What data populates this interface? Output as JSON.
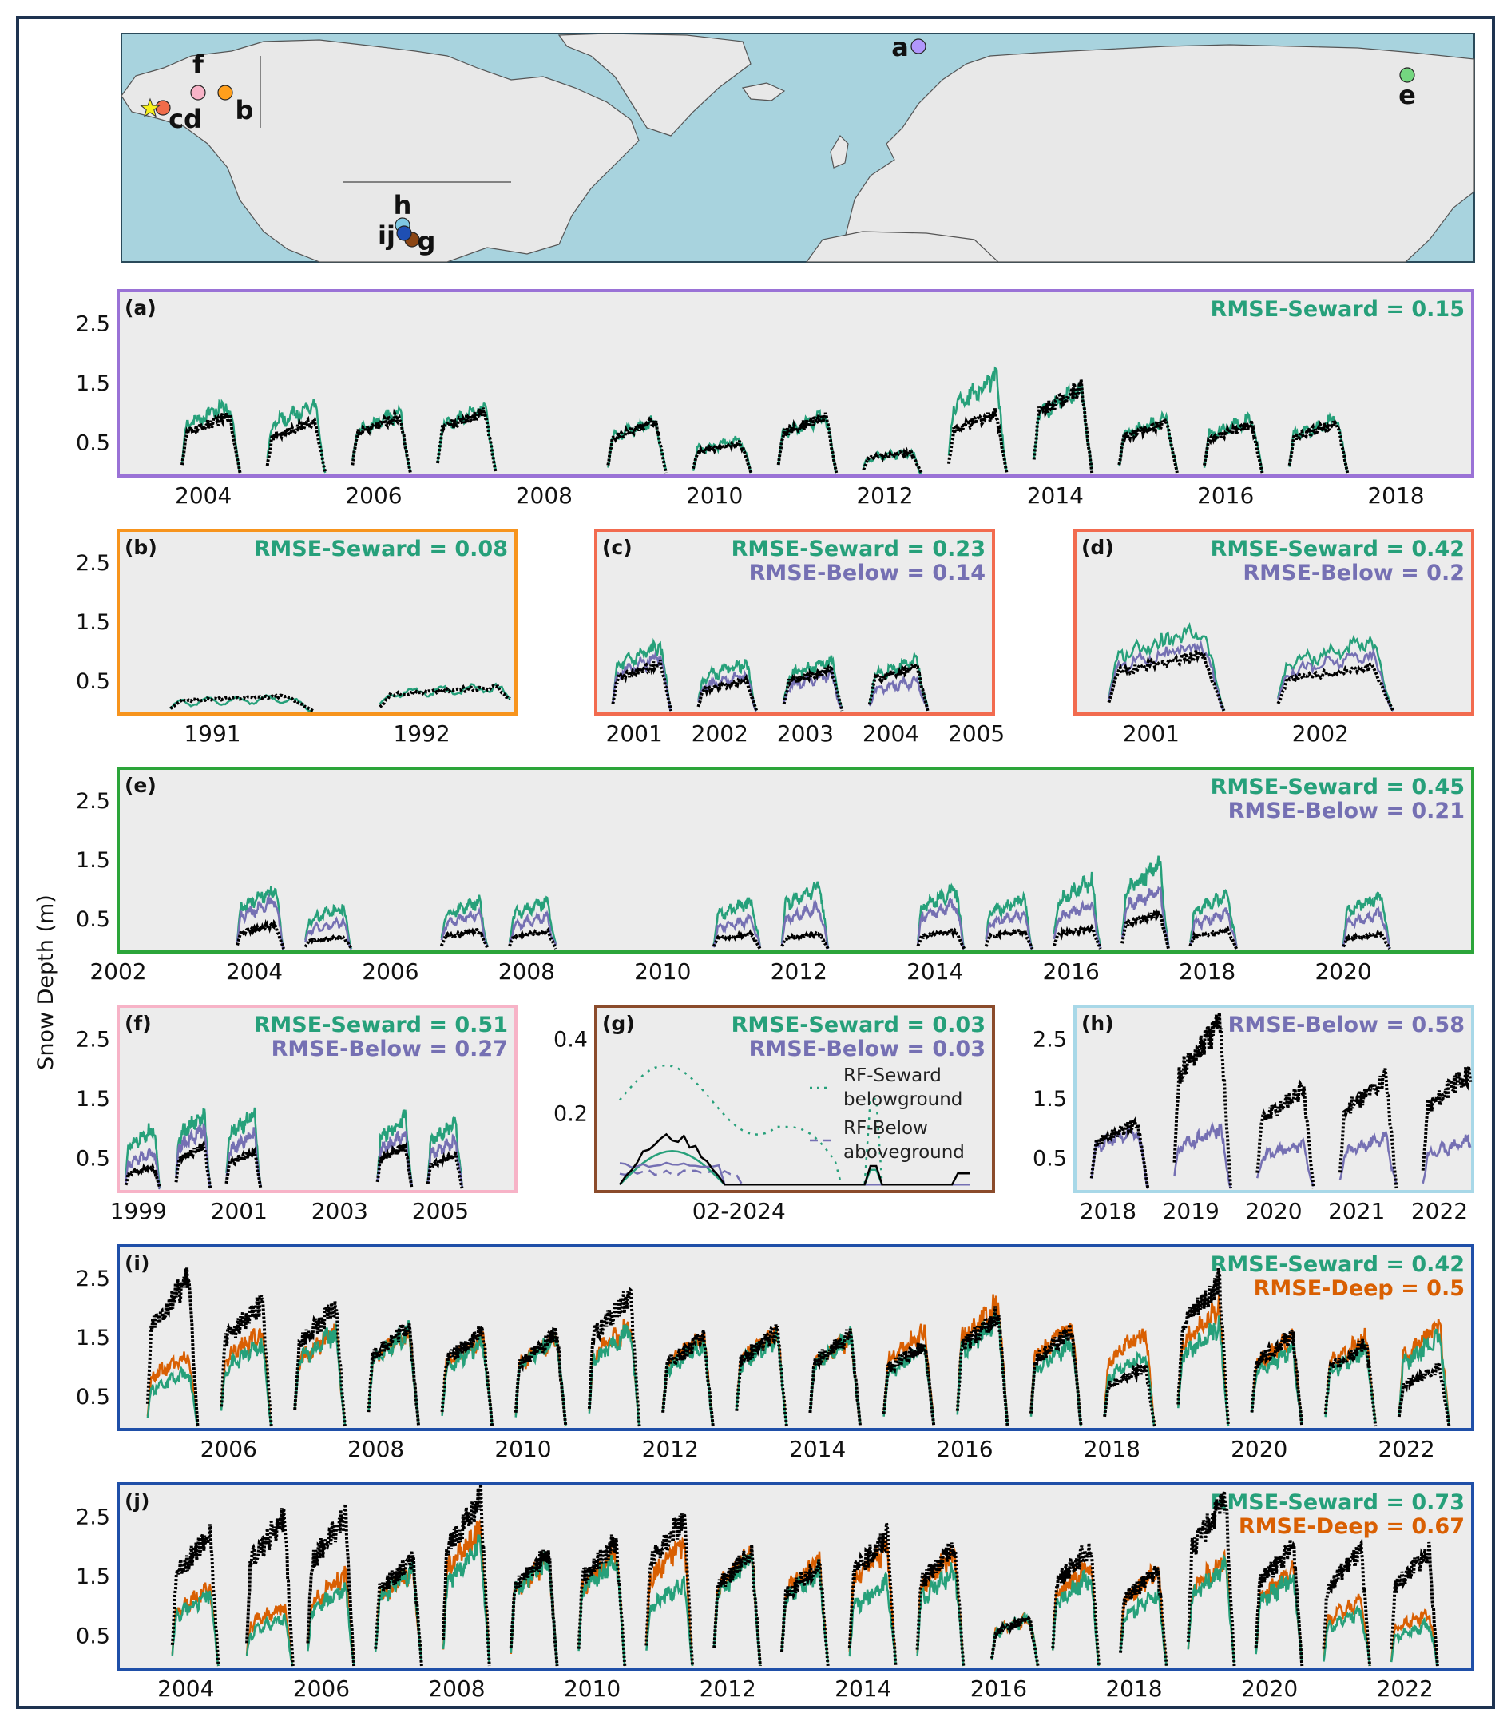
{
  "figure": {
    "ylabel": "Snow Depth (m)",
    "colors": {
      "frame": "#1e3350",
      "panel_bg": "#ececec",
      "seward": "#26a07a",
      "below": "#7570b3",
      "deep": "#d95f02",
      "obs": "#000000",
      "ocean": "#a8d3de",
      "land": "#e8e8e8"
    }
  },
  "map": {
    "sites": [
      {
        "label": "a",
        "color": "#b197fc"
      },
      {
        "label": "b",
        "color": "#ff9f1c"
      },
      {
        "label": "c",
        "color": "#f06c4a"
      },
      {
        "label": "d",
        "color": "#f06c4a"
      },
      {
        "label": "e",
        "color": "#74d680"
      },
      {
        "label": "f",
        "color": "#f7b3c7"
      },
      {
        "label": "g",
        "color": "#8b4513"
      },
      {
        "label": "h",
        "color": "#7ec8e3"
      },
      {
        "label": "i",
        "color": "#1f4fb3"
      },
      {
        "label": "j",
        "color": "#1f4fb3"
      }
    ],
    "labels": [
      "a",
      "b",
      "cd",
      "e",
      "f",
      "g",
      "h",
      "ij"
    ],
    "star_color": "#f7f01a"
  },
  "chart_data": [
    {
      "id": "a",
      "panel_label": "(a)",
      "type": "line",
      "border_color": "#9a72d6",
      "x_ticks": [
        "2004",
        "2006",
        "2008",
        "2010",
        "2012",
        "2014",
        "2016",
        "2018"
      ],
      "y_ticks": [
        "0.5",
        "1.5",
        "2.5"
      ],
      "ylim": [
        0,
        3
      ],
      "rmse": [
        {
          "text": "RMSE-Seward = 0.15",
          "color": "#26a07a"
        }
      ],
      "series": [
        {
          "key": "seward"
        },
        {
          "key": "obs"
        }
      ],
      "seasons": [
        {
          "start": 2003.75,
          "obs": 0.95,
          "seward": 1.15
        },
        {
          "start": 2004.75,
          "obs": 0.85,
          "seward": 1.15
        },
        {
          "start": 2005.75,
          "obs": 0.95,
          "seward": 1.0
        },
        {
          "start": 2006.75,
          "obs": 1.05,
          "seward": 1.1
        },
        {
          "start": 2008.75,
          "obs": 0.85,
          "seward": 0.85
        },
        {
          "start": 2009.75,
          "obs": 0.5,
          "seward": 0.55
        },
        {
          "start": 2010.75,
          "obs": 0.95,
          "seward": 0.95
        },
        {
          "start": 2011.75,
          "obs": 0.35,
          "seward": 0.35
        },
        {
          "start": 2012.75,
          "obs": 1.0,
          "seward": 1.6
        },
        {
          "start": 2013.75,
          "obs": 1.45,
          "seward": 1.4
        },
        {
          "start": 2014.75,
          "obs": 0.85,
          "seward": 0.9
        },
        {
          "start": 2015.75,
          "obs": 0.8,
          "seward": 0.9
        },
        {
          "start": 2016.75,
          "obs": 0.85,
          "seward": 0.9
        }
      ]
    },
    {
      "id": "b",
      "panel_label": "(b)",
      "type": "line",
      "border_color": "#f7941d",
      "x_ticks": [
        "1991",
        "1992"
      ],
      "y_ticks": [
        "0.5",
        "1.5",
        "2.5"
      ],
      "ylim": [
        0,
        3
      ],
      "rmse": [
        {
          "text": "RMSE-Seward = 0.08",
          "color": "#26a07a"
        }
      ],
      "series": [
        {
          "key": "seward"
        },
        {
          "key": "obs"
        }
      ],
      "seasons": [
        {
          "start": 1990.8,
          "obs": 0.25,
          "seward": 0.2
        },
        {
          "start": 1991.8,
          "obs": 0.4,
          "seward": 0.4
        }
      ]
    },
    {
      "id": "c",
      "panel_label": "(c)",
      "type": "line",
      "border_color": "#f26b4f",
      "x_ticks": [
        "2001",
        "2002",
        "2003",
        "2004",
        "2005"
      ],
      "y_ticks": [],
      "ylim": [
        0,
        3
      ],
      "rmse": [
        {
          "text": "RMSE-Seward = 0.23",
          "color": "#26a07a"
        },
        {
          "text": "RMSE-Below = 0.14",
          "color": "#7570b3"
        }
      ],
      "series": [
        {
          "key": "seward"
        },
        {
          "key": "below"
        },
        {
          "key": "obs"
        }
      ],
      "seasons": [
        {
          "start": 2000.75,
          "obs": 0.8,
          "seward": 1.1,
          "below": 0.9
        },
        {
          "start": 2001.75,
          "obs": 0.5,
          "seward": 0.8,
          "below": 0.6
        },
        {
          "start": 2002.75,
          "obs": 0.7,
          "seward": 0.85,
          "below": 0.6
        },
        {
          "start": 2003.75,
          "obs": 0.75,
          "seward": 0.85,
          "below": 0.5
        }
      ]
    },
    {
      "id": "d",
      "panel_label": "(d)",
      "type": "line",
      "border_color": "#f26b4f",
      "x_ticks": [
        "2001",
        "2002"
      ],
      "y_ticks": [],
      "ylim": [
        0,
        3
      ],
      "rmse": [
        {
          "text": "RMSE-Seward = 0.42",
          "color": "#26a07a"
        },
        {
          "text": "RMSE-Below = 0.2",
          "color": "#7570b3"
        }
      ],
      "series": [
        {
          "key": "seward"
        },
        {
          "key": "below"
        },
        {
          "key": "obs"
        }
      ],
      "seasons": [
        {
          "start": 2000.75,
          "obs": 0.95,
          "seward": 1.35,
          "below": 1.1
        },
        {
          "start": 2001.75,
          "obs": 0.75,
          "seward": 1.15,
          "below": 0.95
        }
      ]
    },
    {
      "id": "e",
      "panel_label": "(e)",
      "type": "line",
      "border_color": "#2ca53a",
      "x_ticks": [
        "2002",
        "2004",
        "2006",
        "2008",
        "2010",
        "2012",
        "2014",
        "2016",
        "2018",
        "2020"
      ],
      "y_ticks": [
        "0.5",
        "1.5",
        "2.5"
      ],
      "ylim": [
        0,
        3
      ],
      "rmse": [
        {
          "text": "RMSE-Seward = 0.45",
          "color": "#26a07a"
        },
        {
          "text": "RMSE-Below = 0.21",
          "color": "#7570b3"
        }
      ],
      "series": [
        {
          "key": "seward"
        },
        {
          "key": "below"
        },
        {
          "key": "obs"
        }
      ],
      "seasons": [
        {
          "start": 2003.75,
          "obs": 0.4,
          "seward": 1.0,
          "below": 0.8
        },
        {
          "start": 2004.75,
          "obs": 0.2,
          "seward": 0.7,
          "below": 0.45
        },
        {
          "start": 2006.75,
          "obs": 0.3,
          "seward": 0.8,
          "below": 0.6
        },
        {
          "start": 2007.75,
          "obs": 0.3,
          "seward": 0.8,
          "below": 0.55
        },
        {
          "start": 2010.75,
          "obs": 0.25,
          "seward": 0.8,
          "below": 0.5
        },
        {
          "start": 2011.75,
          "obs": 0.25,
          "seward": 1.05,
          "below": 0.7
        },
        {
          "start": 2013.75,
          "obs": 0.3,
          "seward": 1.0,
          "below": 0.75
        },
        {
          "start": 2014.75,
          "obs": 0.3,
          "seward": 0.85,
          "below": 0.6
        },
        {
          "start": 2015.75,
          "obs": 0.35,
          "seward": 1.15,
          "below": 0.75
        },
        {
          "start": 2016.75,
          "obs": 0.6,
          "seward": 1.4,
          "below": 1.0
        },
        {
          "start": 2017.75,
          "obs": 0.3,
          "seward": 0.9,
          "below": 0.6
        },
        {
          "start": 2020.0,
          "obs": 0.25,
          "seward": 0.9,
          "below": 0.6
        }
      ]
    },
    {
      "id": "f",
      "panel_label": "(f)",
      "type": "line",
      "border_color": "#f7b3c7",
      "x_ticks": [
        "1999",
        "2001",
        "2003",
        "2005"
      ],
      "y_ticks": [
        "0.5",
        "1.5",
        "2.5"
      ],
      "ylim": [
        0,
        3
      ],
      "rmse": [
        {
          "text": "RMSE-Seward = 0.51",
          "color": "#26a07a"
        },
        {
          "text": "RMSE-Below = 0.27",
          "color": "#7570b3"
        }
      ],
      "series": [
        {
          "key": "seward"
        },
        {
          "key": "below"
        },
        {
          "key": "obs"
        }
      ],
      "seasons": [
        {
          "start": 1998.75,
          "obs": 0.35,
          "seward": 1.0,
          "below": 0.6
        },
        {
          "start": 1999.75,
          "obs": 0.7,
          "seward": 1.25,
          "below": 1.0
        },
        {
          "start": 2000.75,
          "obs": 0.6,
          "seward": 1.25,
          "below": 0.9
        },
        {
          "start": 2003.75,
          "obs": 0.7,
          "seward": 1.2,
          "below": 0.9
        },
        {
          "start": 2004.75,
          "obs": 0.55,
          "seward": 1.1,
          "below": 0.8
        }
      ]
    },
    {
      "id": "g",
      "panel_label": "(g)",
      "type": "line",
      "border_color": "#8b4b2b",
      "x_ticks": [
        "02-2024"
      ],
      "y_ticks": [
        "0.2",
        "0.4"
      ],
      "ylim": [
        0,
        0.48
      ],
      "rmse": [
        {
          "text": "RMSE-Seward = 0.03",
          "color": "#26a07a"
        },
        {
          "text": "RMSE-Below = 0.03",
          "color": "#7570b3"
        }
      ],
      "legend": [
        {
          "key": "seward_dotted",
          "line1": "RF-Seward",
          "line2": "belowground"
        },
        {
          "key": "below_dashed",
          "line1": "RF-Below",
          "line2": "aboveground"
        }
      ],
      "series": [
        {
          "key": "seward_dotted"
        },
        {
          "key": "below_dashed"
        },
        {
          "key": "seward"
        },
        {
          "key": "below"
        },
        {
          "key": "obs"
        }
      ],
      "peaks": {
        "obs": 0.14,
        "seward_dotted": 0.31,
        "below_dashed": 0.05
      }
    },
    {
      "id": "h",
      "panel_label": "(h)",
      "type": "line",
      "border_color": "#a8d8e8",
      "x_ticks": [
        "2018",
        "2019",
        "2020",
        "2021",
        "2022"
      ],
      "y_ticks": [
        "0.5",
        "1.5",
        "2.5"
      ],
      "ylim": [
        0,
        3
      ],
      "rmse": [
        {
          "text": "RMSE-Below = 0.58",
          "color": "#7570b3"
        }
      ],
      "series": [
        {
          "key": "below"
        },
        {
          "key": "obs"
        }
      ],
      "seasons": [
        {
          "start": 2017.8,
          "obs": 1.1,
          "below": 1.0
        },
        {
          "start": 2018.8,
          "obs": 2.75,
          "below": 1.0
        },
        {
          "start": 2019.8,
          "obs": 1.65,
          "below": 0.75
        },
        {
          "start": 2020.8,
          "obs": 1.85,
          "below": 0.85
        },
        {
          "start": 2021.8,
          "obs": 1.95,
          "below": 0.8
        }
      ]
    },
    {
      "id": "i",
      "panel_label": "(i)",
      "type": "line",
      "border_color": "#1f4fa8",
      "x_ticks": [
        "2006",
        "2008",
        "2010",
        "2012",
        "2014",
        "2016",
        "2018",
        "2020",
        "2022"
      ],
      "y_ticks": [
        "0.5",
        "1.5",
        "2.5"
      ],
      "ylim": [
        0,
        3
      ],
      "rmse": [
        {
          "text": "RMSE-Seward = 0.42",
          "color": "#26a07a"
        },
        {
          "text": "RMSE-Deep = 0.5",
          "color": "#d95f02"
        }
      ],
      "series": [
        {
          "key": "deep"
        },
        {
          "key": "seward"
        },
        {
          "key": "obs"
        }
      ],
      "seasons": [
        {
          "start": 2004.9,
          "obs": 2.5,
          "seward": 0.9,
          "deep": 1.2
        },
        {
          "start": 2005.9,
          "obs": 2.1,
          "seward": 1.4,
          "deep": 1.6
        },
        {
          "start": 2006.9,
          "obs": 2.0,
          "seward": 1.6,
          "deep": 1.6
        },
        {
          "start": 2007.9,
          "obs": 1.7,
          "seward": 1.6,
          "deep": 1.6
        },
        {
          "start": 2008.9,
          "obs": 1.6,
          "seward": 1.4,
          "deep": 1.5
        },
        {
          "start": 2009.9,
          "obs": 1.55,
          "seward": 1.5,
          "deep": 1.5
        },
        {
          "start": 2010.9,
          "obs": 2.2,
          "seward": 1.6,
          "deep": 1.7
        },
        {
          "start": 2011.9,
          "obs": 1.5,
          "seward": 1.4,
          "deep": 1.5
        },
        {
          "start": 2012.9,
          "obs": 1.6,
          "seward": 1.5,
          "deep": 1.6
        },
        {
          "start": 2013.9,
          "obs": 1.55,
          "seward": 1.5,
          "deep": 1.5
        },
        {
          "start": 2014.9,
          "obs": 1.4,
          "seward": 1.3,
          "deep": 1.6
        },
        {
          "start": 2015.9,
          "obs": 1.9,
          "seward": 1.8,
          "deep": 2.1
        },
        {
          "start": 2016.9,
          "obs": 1.6,
          "seward": 1.4,
          "deep": 1.7
        },
        {
          "start": 2017.9,
          "obs": 1.0,
          "seward": 1.2,
          "deep": 1.6
        },
        {
          "start": 2018.9,
          "obs": 2.45,
          "seward": 1.7,
          "deep": 2.0
        },
        {
          "start": 2019.9,
          "obs": 1.55,
          "seward": 1.3,
          "deep": 1.5
        },
        {
          "start": 2020.9,
          "obs": 1.4,
          "seward": 1.3,
          "deep": 1.5
        },
        {
          "start": 2021.9,
          "obs": 1.0,
          "seward": 1.5,
          "deep": 1.7
        }
      ]
    },
    {
      "id": "j",
      "panel_label": "(j)",
      "type": "line",
      "border_color": "#1f4fa8",
      "x_ticks": [
        "2004",
        "2006",
        "2008",
        "2010",
        "2012",
        "2014",
        "2016",
        "2018",
        "2020",
        "2022"
      ],
      "y_ticks": [
        "0.5",
        "1.5",
        "2.5"
      ],
      "ylim": [
        0,
        3
      ],
      "rmse": [
        {
          "text": "RMSE-Seward = 0.73",
          "color": "#26a07a"
        },
        {
          "text": "RMSE-Deep = 0.67",
          "color": "#d95f02"
        }
      ],
      "series": [
        {
          "key": "deep"
        },
        {
          "key": "seward"
        },
        {
          "key": "obs"
        }
      ],
      "seasons": [
        {
          "start": 2003.8,
          "obs": 2.2,
          "seward": 1.2,
          "deep": 1.3
        },
        {
          "start": 2004.9,
          "obs": 2.5,
          "seward": 0.8,
          "deep": 1.0
        },
        {
          "start": 2005.8,
          "obs": 2.5,
          "seward": 1.3,
          "deep": 1.5
        },
        {
          "start": 2006.8,
          "obs": 1.8,
          "seward": 1.6,
          "deep": 1.6
        },
        {
          "start": 2007.8,
          "obs": 2.8,
          "seward": 2.0,
          "deep": 2.3
        },
        {
          "start": 2008.8,
          "obs": 1.9,
          "seward": 1.8,
          "deep": 1.8
        },
        {
          "start": 2009.8,
          "obs": 2.1,
          "seward": 1.8,
          "deep": 1.9
        },
        {
          "start": 2010.8,
          "obs": 2.5,
          "seward": 1.4,
          "deep": 2.1
        },
        {
          "start": 2011.8,
          "obs": 1.9,
          "seward": 1.8,
          "deep": 1.9
        },
        {
          "start": 2012.8,
          "obs": 1.7,
          "seward": 1.6,
          "deep": 1.8
        },
        {
          "start": 2013.8,
          "obs": 2.2,
          "seward": 1.4,
          "deep": 2.0
        },
        {
          "start": 2014.8,
          "obs": 2.0,
          "seward": 1.6,
          "deep": 1.9
        },
        {
          "start": 2015.9,
          "obs": 0.8,
          "seward": 0.8,
          "deep": 0.8
        },
        {
          "start": 2016.8,
          "obs": 2.0,
          "seward": 1.5,
          "deep": 1.7
        },
        {
          "start": 2017.8,
          "obs": 1.6,
          "seward": 1.2,
          "deep": 1.6
        },
        {
          "start": 2018.8,
          "obs": 2.8,
          "seward": 1.7,
          "deep": 1.8
        },
        {
          "start": 2019.8,
          "obs": 2.0,
          "seward": 1.5,
          "deep": 1.6
        },
        {
          "start": 2020.8,
          "obs": 1.9,
          "seward": 0.9,
          "deep": 1.1
        },
        {
          "start": 2021.8,
          "obs": 1.9,
          "seward": 0.7,
          "deep": 0.9
        }
      ]
    }
  ]
}
